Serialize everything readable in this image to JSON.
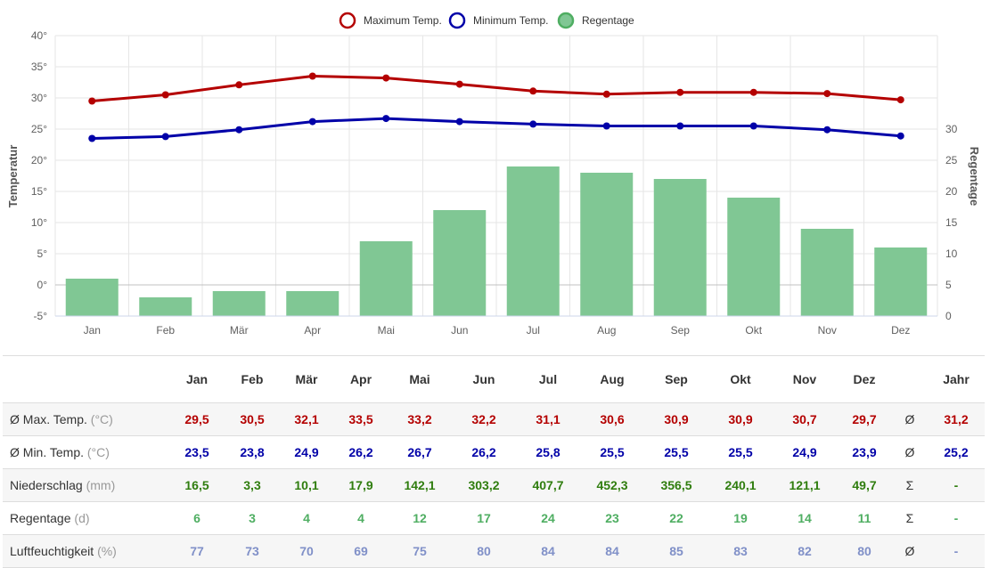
{
  "chart_data": {
    "type": "bar+line",
    "categories": [
      "Jan",
      "Feb",
      "Mär",
      "Apr",
      "Mai",
      "Jun",
      "Jul",
      "Aug",
      "Sep",
      "Okt",
      "Nov",
      "Dez"
    ],
    "series": [
      {
        "name": "Maximum Temp.",
        "type": "line",
        "axis": "left",
        "color": "#b40000",
        "values": [
          29.5,
          30.5,
          32.1,
          33.5,
          33.2,
          32.2,
          31.1,
          30.6,
          30.9,
          30.9,
          30.7,
          29.7
        ]
      },
      {
        "name": "Minimum Temp.",
        "type": "line",
        "axis": "left",
        "color": "#0000a8",
        "values": [
          23.5,
          23.8,
          24.9,
          26.2,
          26.7,
          26.2,
          25.8,
          25.5,
          25.5,
          25.5,
          24.9,
          23.9
        ]
      },
      {
        "name": "Regentage",
        "type": "bar",
        "axis": "right",
        "color": "#80c794",
        "values": [
          6,
          3,
          4,
          4,
          12,
          17,
          24,
          23,
          22,
          19,
          14,
          11
        ]
      }
    ],
    "left_axis": {
      "title": "Temperatur",
      "min": -5,
      "max": 40,
      "ticks": [
        -5,
        0,
        5,
        10,
        15,
        20,
        25,
        30,
        35,
        40
      ],
      "suffix": "°"
    },
    "right_axis": {
      "title": "Regentage",
      "min": 0,
      "max": 45,
      "ticks": [
        0,
        5,
        10,
        15,
        20,
        25,
        30
      ]
    },
    "legend_position": "top-center",
    "grid": true
  },
  "table": {
    "year_label": "Jahr",
    "rows": [
      {
        "label": "Ø Max. Temp.",
        "unit": "(°C)",
        "color": "#b40000",
        "values": [
          "29,5",
          "30,5",
          "32,1",
          "33,5",
          "33,2",
          "32,2",
          "31,1",
          "30,6",
          "30,9",
          "30,9",
          "30,7",
          "29,7"
        ],
        "symbol": "Ø",
        "year": "31,2"
      },
      {
        "label": "Ø Min. Temp.",
        "unit": "(°C)",
        "color": "#0000a8",
        "values": [
          "23,5",
          "23,8",
          "24,9",
          "26,2",
          "26,7",
          "26,2",
          "25,8",
          "25,5",
          "25,5",
          "25,5",
          "24,9",
          "23,9"
        ],
        "symbol": "Ø",
        "year": "25,2"
      },
      {
        "label": "Niederschlag",
        "unit": "(mm)",
        "color": "#2f7d0e",
        "values": [
          "16,5",
          "3,3",
          "10,1",
          "17,9",
          "142,1",
          "303,2",
          "407,7",
          "452,3",
          "356,5",
          "240,1",
          "121,1",
          "49,7"
        ],
        "symbol": "Σ",
        "year": "-"
      },
      {
        "label": "Regentage",
        "unit": "(d)",
        "color": "#4fae62",
        "values": [
          "6",
          "3",
          "4",
          "4",
          "12",
          "17",
          "24",
          "23",
          "22",
          "19",
          "14",
          "11"
        ],
        "symbol": "Σ",
        "year": "-"
      },
      {
        "label": "Luftfeuchtigkeit",
        "unit": "(%)",
        "color": "#8090c8",
        "values": [
          "77",
          "73",
          "70",
          "69",
          "75",
          "80",
          "84",
          "84",
          "85",
          "83",
          "82",
          "80"
        ],
        "symbol": "Ø",
        "year": "-"
      }
    ]
  }
}
